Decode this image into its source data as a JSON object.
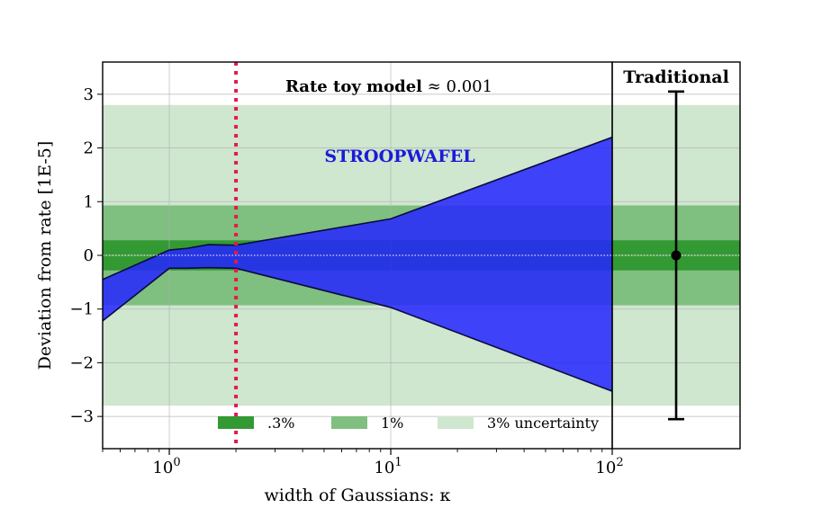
{
  "chart_data": {
    "type": "area",
    "panels": [
      {
        "name": "main",
        "title": "Rate toy model ≈ 0.001",
        "title_bold": "Rate toy model",
        "title_math": "≈ 0.001",
        "annotation": "STROOPWAFEL",
        "xlabel": "width of Gaussians: κ",
        "ylabel": "Deviation from rate [1E-5]",
        "xscale": "log",
        "xlim": [
          0.5,
          100
        ],
        "ylim": [
          -3.6,
          3.6
        ],
        "grid": true,
        "xticks": [
          {
            "value": 1,
            "base": "10",
            "exp": "0"
          },
          {
            "value": 10,
            "base": "10",
            "exp": "1"
          },
          {
            "value": 100,
            "base": "10",
            "exp": "2"
          }
        ],
        "yticks": [
          {
            "value": 3,
            "label": "3"
          },
          {
            "value": 2,
            "label": "2"
          },
          {
            "value": 1,
            "label": "1"
          },
          {
            "value": 0,
            "label": "0"
          },
          {
            "value": -1,
            "label": "−1"
          },
          {
            "value": -2,
            "label": "−2"
          },
          {
            "value": -3,
            "label": "−3"
          }
        ],
        "uncertainty_bands": [
          {
            "label": "3% uncertainty",
            "half_width": 2.8,
            "color": "#cfe6cf"
          },
          {
            "label": "1%",
            "half_width": 0.93,
            "color": "#7fbf7f"
          },
          {
            "label": ".3%",
            "half_width": 0.28,
            "color": "#339933"
          }
        ],
        "zero_line": {
          "y": 0,
          "style": "dotted",
          "color": "#ffffff"
        },
        "vertical_line": {
          "x": 2,
          "style": "dotted",
          "color": "#e8174f"
        },
        "series": [
          {
            "name": "STROOPWAFEL",
            "color": "#2424ff",
            "x": [
              0.5,
              1.0,
              1.2,
              1.5,
              2.0,
              10.0,
              100.0
            ],
            "upper": [
              -0.45,
              0.1,
              0.13,
              0.2,
              0.19,
              0.68,
              2.2
            ],
            "lower": [
              -1.22,
              -0.24,
              -0.24,
              -0.23,
              -0.24,
              -0.97,
              -2.53
            ]
          }
        ]
      },
      {
        "name": "traditional",
        "title": "Traditional",
        "ylim": [
          -3.6,
          3.6
        ],
        "point": {
          "y": 0,
          "error_low": -3.05,
          "error_high": 3.05,
          "color": "#000000"
        }
      }
    ],
    "legend": {
      "placement": "bottom-center",
      "entries": [
        {
          "label": ".3%",
          "color": "#339933"
        },
        {
          "label": "1%",
          "color": "#7fbf7f"
        },
        {
          "label": "3% uncertainty",
          "color": "#cfe6cf"
        }
      ]
    }
  }
}
